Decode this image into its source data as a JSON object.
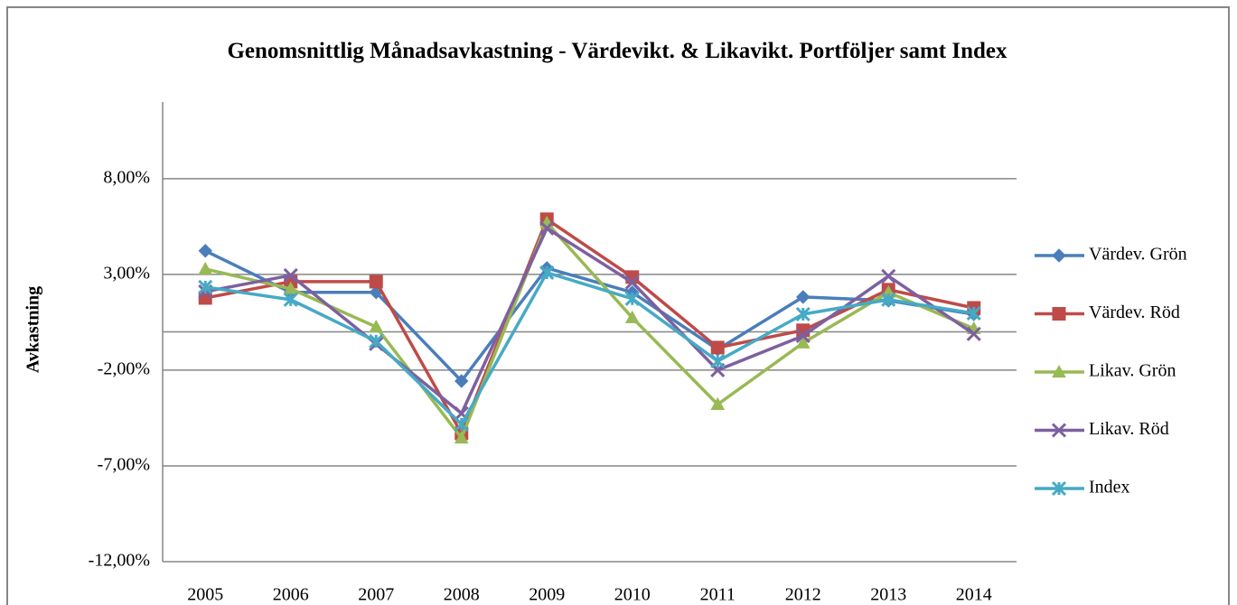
{
  "chart_data": {
    "type": "line",
    "title": "Genomsnittlig Månadsavkastning - Värdevikt. & Likavikt. Portföljer samt Index",
    "y_label": "Avkastning",
    "categories": [
      "2005",
      "2006",
      "2007",
      "2008",
      "2009",
      "2010",
      "2011",
      "2012",
      "2013",
      "2014"
    ],
    "series": [
      {
        "name": "Värdev. Grön",
        "color": "#4a7ebb",
        "marker": "diamond",
        "values": [
          4.23,
          2.06,
          2.06,
          -2.57,
          3.33,
          2.06,
          -0.92,
          1.82,
          1.63,
          0.92
        ]
      },
      {
        "name": "Värdev. Röd",
        "color": "#be4b48",
        "marker": "square",
        "values": [
          1.77,
          2.62,
          2.62,
          -5.3,
          5.88,
          2.86,
          -0.82,
          0.08,
          2.2,
          1.25
        ]
      },
      {
        "name": "Likav. Grön",
        "color": "#98b954",
        "marker": "triangle",
        "values": [
          3.28,
          2.25,
          0.26,
          -5.54,
          5.69,
          0.74,
          -3.79,
          -0.58,
          2.06,
          0.17
        ]
      },
      {
        "name": "Likav. Röd",
        "color": "#7d60a0",
        "marker": "x",
        "values": [
          2.1,
          2.95,
          -0.63,
          -4.26,
          5.41,
          2.58,
          -2.0,
          -0.21,
          2.91,
          -0.11
        ]
      },
      {
        "name": "Index",
        "color": "#46aac5",
        "marker": "star",
        "values": [
          2.34,
          1.68,
          -0.49,
          -4.83,
          3.09,
          1.73,
          -1.53,
          0.92,
          1.68,
          0.97
        ]
      }
    ],
    "ylim": [
      -12,
      12
    ],
    "yticks": [
      {
        "value": -12,
        "label": "-12,00%"
      },
      {
        "value": -7,
        "label": "-7,00%"
      },
      {
        "value": -2,
        "label": "-2,00%"
      },
      {
        "value": 3,
        "label": "3,00%"
      },
      {
        "value": 8,
        "label": "8,00%"
      }
    ],
    "grid": true,
    "legend": "right"
  }
}
